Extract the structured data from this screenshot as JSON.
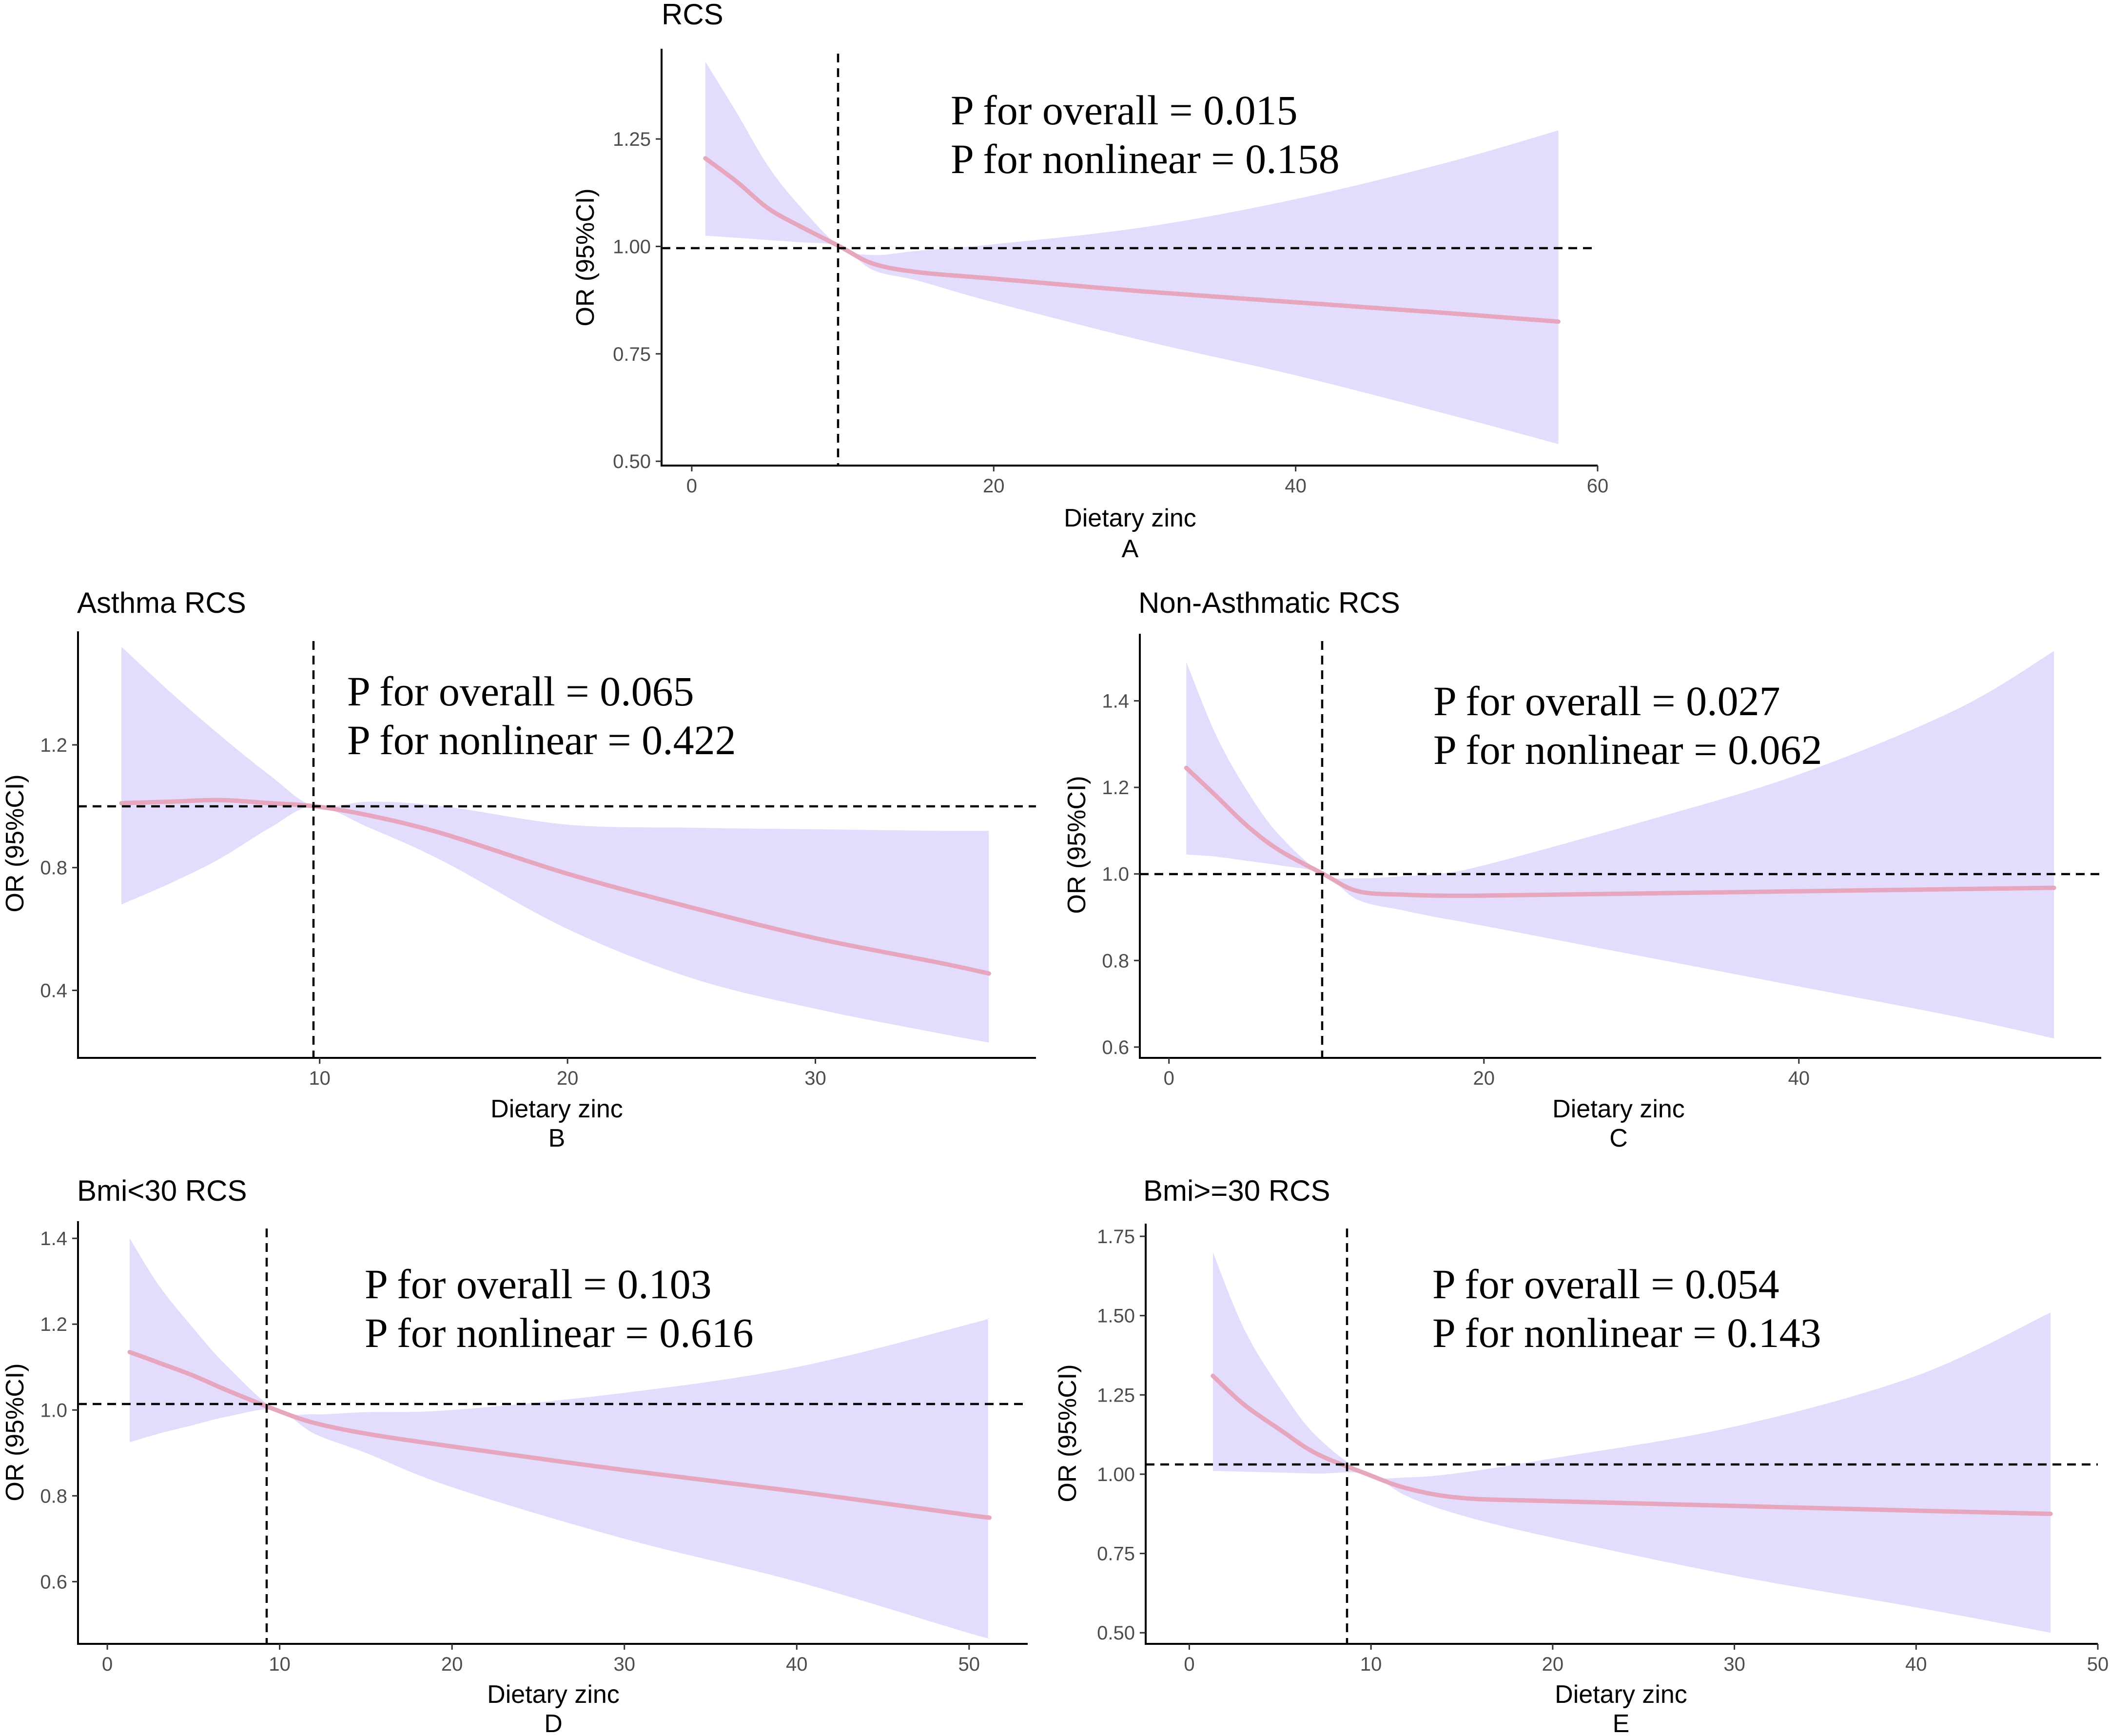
{
  "colors": {
    "ci_band": "#e3dcfd",
    "or_line": "#e6a6bd",
    "axis": "#000000",
    "tick_label": "#4d4d4d"
  },
  "chart_data": [
    {
      "id": "A",
      "type": "line",
      "title": "RCS",
      "xlabel": "Dietary zinc",
      "ylabel": "OR (95%CI)",
      "panel_label": "A",
      "annotations": [
        "P for overall = 0.015",
        "P for nonlinear = 0.158"
      ],
      "xlim": [
        -2,
        60
      ],
      "ylim": [
        0.49,
        1.46
      ],
      "xticks": [
        0,
        20,
        40,
        60
      ],
      "xtick_labels": [
        "0",
        "20",
        "40",
        "60"
      ],
      "yticks": [
        0.5,
        0.75,
        1.0,
        1.25
      ],
      "ytick_labels": [
        "0.50",
        "0.75",
        "1.00",
        "1.25"
      ],
      "ref_x": 9.8,
      "ref_y": 1.0,
      "series": [
        {
          "name": "OR",
          "x": [
            0.9,
            3,
            5,
            7,
            9.8,
            12,
            15,
            20,
            30,
            40,
            50,
            57.4
          ],
          "values": [
            1.205,
            1.15,
            1.09,
            1.05,
            1.0,
            0.96,
            0.94,
            0.925,
            0.895,
            0.87,
            0.845,
            0.825
          ]
        },
        {
          "name": "CI lower",
          "x": [
            0.9,
            3,
            5,
            7,
            9.8,
            12,
            15,
            20,
            30,
            40,
            50,
            57.4
          ],
          "values": [
            1.025,
            1.02,
            1.015,
            1.01,
            1.0,
            0.945,
            0.92,
            0.87,
            0.78,
            0.7,
            0.61,
            0.54
          ]
        },
        {
          "name": "CI upper",
          "x": [
            0.9,
            3,
            5,
            7,
            9.8,
            12,
            15,
            20,
            30,
            40,
            50,
            57.4
          ],
          "values": [
            1.43,
            1.31,
            1.19,
            1.1,
            1.0,
            0.98,
            0.99,
            1.005,
            1.045,
            1.11,
            1.195,
            1.27
          ]
        }
      ]
    },
    {
      "id": "B",
      "type": "line",
      "title": "Asthma RCS",
      "xlabel": "Dietary zinc",
      "ylabel": "OR (95%CI)",
      "panel_label": "B",
      "annotations": [
        "P for overall = 0.065",
        "P for nonlinear = 0.422"
      ],
      "xlim": [
        0.25,
        38.9
      ],
      "ylim": [
        0.18,
        1.57
      ],
      "xticks": [
        10,
        20,
        30
      ],
      "xtick_labels": [
        "10",
        "20",
        "30"
      ],
      "yticks": [
        0.4,
        0.8,
        1.2
      ],
      "ytick_labels": [
        "0.4",
        "0.8",
        "1.2"
      ],
      "ref_x": 9.8,
      "ref_y": 1.0,
      "series": [
        {
          "name": "OR",
          "x": [
            2,
            4,
            6,
            8,
            9.8,
            12,
            15,
            20,
            25,
            30,
            35,
            37
          ],
          "values": [
            1.01,
            1.015,
            1.02,
            1.01,
            1.0,
            0.97,
            0.91,
            0.78,
            0.67,
            0.57,
            0.49,
            0.455
          ]
        },
        {
          "name": "CI lower",
          "x": [
            2,
            4,
            6,
            8,
            9.8,
            12,
            15,
            20,
            25,
            30,
            35,
            37
          ],
          "values": [
            0.68,
            0.75,
            0.83,
            0.93,
            1.0,
            0.93,
            0.82,
            0.6,
            0.44,
            0.34,
            0.26,
            0.23
          ]
        },
        {
          "name": "CI upper",
          "x": [
            2,
            4,
            6,
            8,
            9.8,
            12,
            15,
            20,
            25,
            30,
            35,
            37
          ],
          "values": [
            1.52,
            1.37,
            1.23,
            1.1,
            1.0,
            1.015,
            1.0,
            0.94,
            0.93,
            0.925,
            0.92,
            0.92
          ]
        }
      ]
    },
    {
      "id": "C",
      "type": "line",
      "title": "Non-Asthmatic RCS",
      "xlabel": "Dietary zinc",
      "ylabel": "OR (95%CI)",
      "panel_label": "C",
      "annotations": [
        "P for overall = 0.027",
        "P for nonlinear = 0.062"
      ],
      "xlim": [
        -1.85,
        59.2
      ],
      "ylim": [
        0.575,
        1.555
      ],
      "xticks": [
        0,
        20,
        40
      ],
      "xtick_labels": [
        "0",
        "20",
        "40"
      ],
      "yticks": [
        0.6,
        0.8,
        1.0,
        1.2,
        1.4
      ],
      "ytick_labels": [
        "0.6",
        "0.8",
        "1.0",
        "1.2",
        "1.4"
      ],
      "ref_x": 9.8,
      "ref_y": 1.0,
      "series": [
        {
          "name": "OR",
          "x": [
            1.1,
            3,
            5,
            7,
            9.8,
            12,
            15,
            17,
            20,
            30,
            40,
            50,
            56.2
          ],
          "values": [
            1.245,
            1.18,
            1.11,
            1.055,
            1.0,
            0.96,
            0.952,
            0.95,
            0.95,
            0.955,
            0.96,
            0.965,
            0.968
          ]
        },
        {
          "name": "CI lower",
          "x": [
            1.1,
            3,
            5,
            7,
            9.8,
            12,
            15,
            17,
            20,
            30,
            40,
            50,
            56.2
          ],
          "values": [
            1.045,
            1.04,
            1.03,
            1.02,
            1.0,
            0.94,
            0.915,
            0.9,
            0.88,
            0.81,
            0.74,
            0.67,
            0.62
          ]
        },
        {
          "name": "CI upper",
          "x": [
            1.1,
            3,
            5,
            7,
            9.8,
            12,
            15,
            17,
            20,
            30,
            40,
            50,
            56.2
          ],
          "values": [
            1.49,
            1.32,
            1.19,
            1.09,
            1.0,
            0.99,
            0.995,
            1.0,
            1.02,
            1.12,
            1.23,
            1.38,
            1.515
          ]
        }
      ]
    },
    {
      "id": "D",
      "type": "line",
      "title": "Bmi<30 RCS",
      "xlabel": "Dietary zinc",
      "ylabel": "OR (95%CI)",
      "panel_label": "D",
      "annotations": [
        "P for overall = 0.103",
        "P for nonlinear = 0.616"
      ],
      "xlim": [
        -1.7,
        53.4
      ],
      "ylim": [
        0.455,
        1.44
      ],
      "xticks": [
        0,
        10,
        20,
        30,
        40,
        50
      ],
      "xtick_labels": [
        "0",
        "10",
        "20",
        "30",
        "40",
        "50"
      ],
      "yticks": [
        0.6,
        0.8,
        1.0,
        1.2,
        1.4
      ],
      "ytick_labels": [
        "0.6",
        "0.8",
        "1.0",
        "1.2",
        "1.4"
      ],
      "ref_x": 9.8,
      "ref_y": 1.0,
      "series": [
        {
          "name": "OR",
          "x": [
            1.3,
            3,
            5,
            7,
            9.8,
            12,
            15,
            20,
            30,
            40,
            50,
            51.1
          ],
          "values": [
            1.135,
            1.11,
            1.08,
            1.045,
            1.0,
            0.97,
            0.945,
            0.915,
            0.86,
            0.81,
            0.755,
            0.75
          ]
        },
        {
          "name": "CI lower",
          "x": [
            1.3,
            3,
            5,
            7,
            9.8,
            12,
            15,
            20,
            30,
            40,
            50,
            51.1
          ],
          "values": [
            0.925,
            0.945,
            0.965,
            0.985,
            1.0,
            0.945,
            0.9,
            0.82,
            0.7,
            0.6,
            0.48,
            0.47
          ]
        },
        {
          "name": "CI upper",
          "x": [
            1.3,
            3,
            5,
            7,
            9.8,
            12,
            15,
            20,
            30,
            40,
            50,
            51.1
          ],
          "values": [
            1.4,
            1.29,
            1.19,
            1.1,
            1.0,
            0.99,
            0.995,
            1.0,
            1.04,
            1.1,
            1.2,
            1.215
          ]
        }
      ]
    },
    {
      "id": "E",
      "type": "line",
      "title": "Bmi>=30 RCS",
      "xlabel": "Dietary zinc",
      "ylabel": "OR (95%CI)",
      "panel_label": "E",
      "annotations": [
        "P for overall = 0.054",
        "P for nonlinear = 0.143"
      ],
      "xlim": [
        -2.4,
        50
      ],
      "ylim": [
        0.465,
        1.79
      ],
      "xticks": [
        0,
        10,
        20,
        30,
        40,
        50
      ],
      "xtick_labels": [
        "0",
        "10",
        "20",
        "30",
        "40",
        "50"
      ],
      "yticks": [
        0.5,
        0.75,
        1.0,
        1.25,
        1.5,
        1.75
      ],
      "ytick_labels": [
        "0.50",
        "0.75",
        "1.00",
        "1.25",
        "1.50",
        "1.75"
      ],
      "ref_x": 9.8,
      "ref_y": 1.0,
      "series": [
        {
          "name": "OR",
          "x": [
            1.3,
            3,
            5,
            7,
            9.8,
            12,
            15,
            20,
            30,
            40,
            47.4
          ],
          "values": [
            1.31,
            1.22,
            1.14,
            1.065,
            1.0,
            0.955,
            0.925,
            0.915,
            0.9,
            0.885,
            0.875
          ]
        },
        {
          "name": "CI lower",
          "x": [
            1.3,
            3,
            5,
            7,
            9.8,
            12,
            15,
            20,
            30,
            40,
            47.4
          ],
          "values": [
            1.01,
            1.008,
            1.005,
            1.002,
            1.0,
            0.93,
            0.87,
            0.8,
            0.68,
            0.58,
            0.5
          ]
        },
        {
          "name": "CI upper",
          "x": [
            1.3,
            3,
            5,
            7,
            9.8,
            12,
            15,
            20,
            30,
            40,
            47.4
          ],
          "values": [
            1.7,
            1.46,
            1.27,
            1.12,
            1.0,
            0.99,
            1.005,
            1.05,
            1.15,
            1.31,
            1.51
          ]
        }
      ]
    }
  ]
}
